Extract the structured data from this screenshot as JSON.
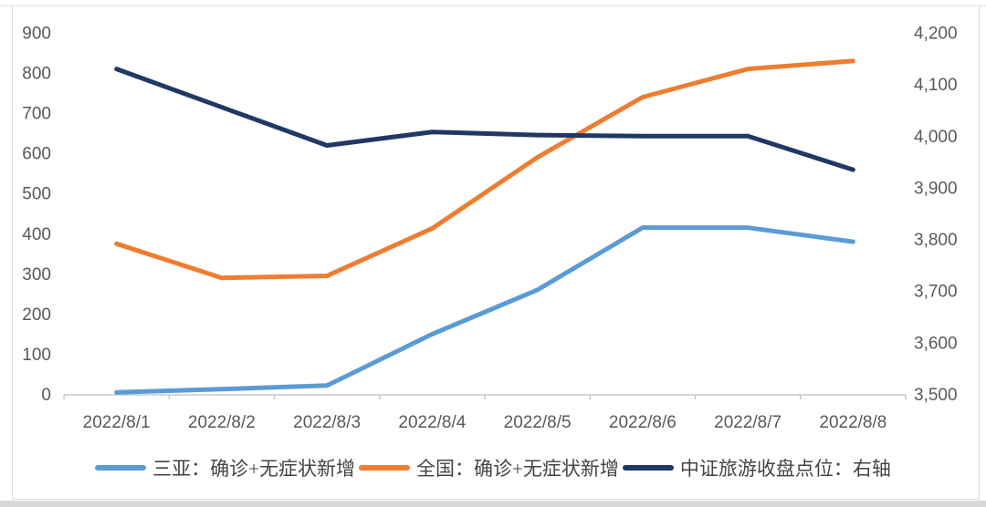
{
  "chart_data": {
    "type": "line",
    "title": "",
    "xlabel": "",
    "ylabel_left": "",
    "ylabel_right": "",
    "grid": false,
    "legend_position": "bottom",
    "categories": [
      "2022/8/1",
      "2022/8/2",
      "2022/8/3",
      "2022/8/4",
      "2022/8/5",
      "2022/8/6",
      "2022/8/7",
      "2022/8/8"
    ],
    "series": [
      {
        "name": "三亚：确诊+无症状新增",
        "axis": "left",
        "color": "#5B9BD5",
        "values": [
          5,
          13,
          22,
          150,
          260,
          415,
          415,
          380
        ]
      },
      {
        "name": "全国：确诊+无症状新增",
        "axis": "left",
        "color": "#ED7D31",
        "values": [
          375,
          290,
          295,
          413,
          590,
          740,
          810,
          830
        ]
      },
      {
        "name": "中证旅游收盘点位：右轴",
        "axis": "right",
        "color": "#203864",
        "values": [
          4130,
          4056,
          3982,
          4008,
          4002,
          4000,
          4000,
          3935
        ]
      }
    ],
    "left_axis": {
      "min": 0,
      "max": 900,
      "step": 100,
      "tick_labels": [
        "0",
        "100",
        "200",
        "300",
        "400",
        "500",
        "600",
        "700",
        "800",
        "900"
      ]
    },
    "right_axis": {
      "min": 3500,
      "max": 4200,
      "step": 100,
      "tick_labels": [
        "3,500",
        "3,600",
        "3,700",
        "3,800",
        "3,900",
        "4,000",
        "4,100",
        "4,200"
      ]
    },
    "styles": {
      "axis_line_color": "#BFBFBF",
      "tick_label_color": "#595959",
      "legend_text_color": "#444444",
      "frame_color": "#DCDCDC",
      "background": "#FFFFFF",
      "series_colors": [
        "#5B9BD5",
        "#ED7D31",
        "#203864"
      ]
    }
  }
}
